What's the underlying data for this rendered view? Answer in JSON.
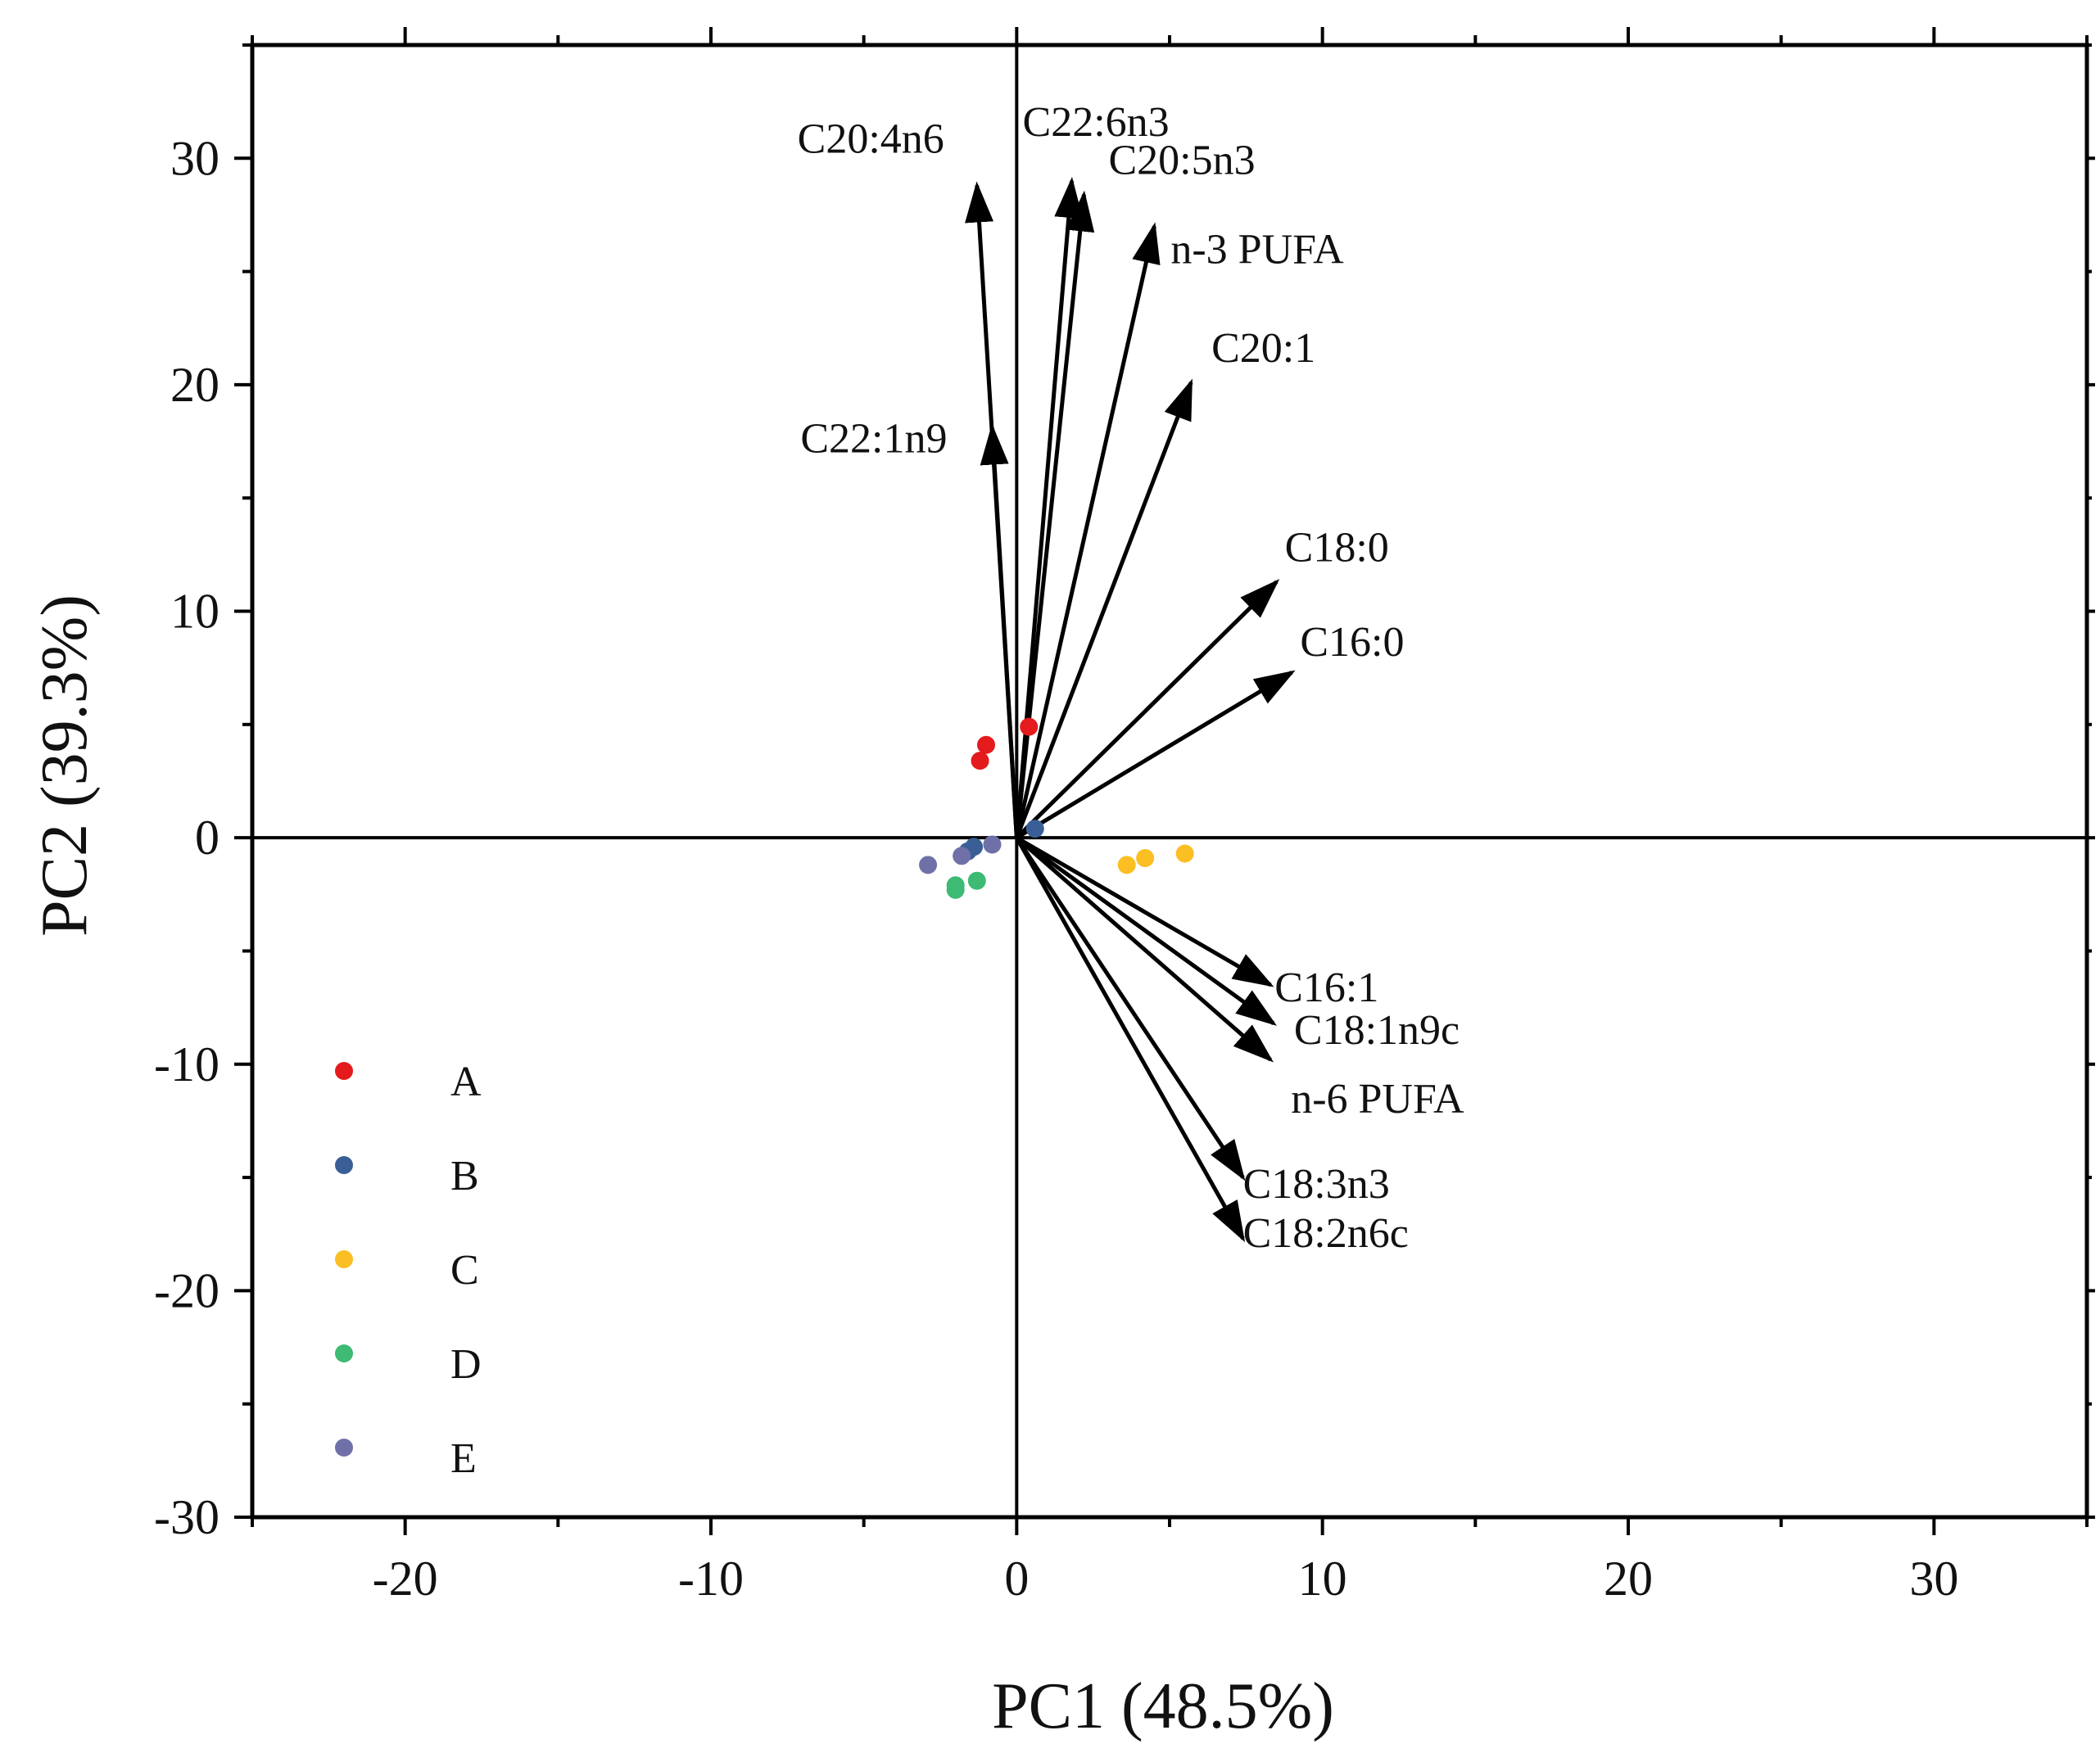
{
  "chart_data": {
    "type": "scatter",
    "subtype": "pca-biplot",
    "title": "",
    "xlabel": "PC1 (48.5%)",
    "ylabel": "PC2 (39.3%)",
    "xlim": [
      -25,
      35
    ],
    "ylim": [
      -30,
      35
    ],
    "xticks": [
      -20,
      -10,
      0,
      10,
      20,
      30
    ],
    "yticks": [
      -30,
      -20,
      -10,
      0,
      10,
      20,
      30
    ],
    "grid": false,
    "legend_position": "bottom-left",
    "series": [
      {
        "name": "A",
        "color": "#e41a1c",
        "points": [
          [
            -1.0,
            4.1
          ],
          [
            -1.2,
            3.4
          ],
          [
            0.4,
            4.9
          ]
        ]
      },
      {
        "name": "B",
        "color": "#3a5f96",
        "points": [
          [
            -1.4,
            -0.4
          ],
          [
            0.6,
            0.4
          ],
          [
            -1.6,
            -0.6
          ]
        ]
      },
      {
        "name": "C",
        "color": "#fbbf24",
        "points": [
          [
            3.6,
            -1.2
          ],
          [
            4.2,
            -0.9
          ],
          [
            5.5,
            -0.7
          ]
        ]
      },
      {
        "name": "D",
        "color": "#3dba74",
        "points": [
          [
            -2.0,
            -2.1
          ],
          [
            -2.0,
            -2.3
          ],
          [
            -1.3,
            -1.9
          ]
        ]
      },
      {
        "name": "E",
        "color": "#7070a8",
        "points": [
          [
            -2.9,
            -1.2
          ],
          [
            -1.8,
            -0.8
          ],
          [
            -0.8,
            -0.3
          ]
        ]
      }
    ],
    "vectors": [
      {
        "label": "C20:4n6",
        "x": -1.3,
        "y": 28.8
      },
      {
        "label": "C22:6n3",
        "x": 1.8,
        "y": 29.0
      },
      {
        "label": "C20:5n3",
        "x": 2.2,
        "y": 28.4
      },
      {
        "label": "n-3 PUFA",
        "x": 4.5,
        "y": 27.0
      },
      {
        "label": "C20:1",
        "x": 5.7,
        "y": 20.1
      },
      {
        "label": "C22:1n9",
        "x": -0.8,
        "y": 18.1
      },
      {
        "label": "C18:0",
        "x": 8.5,
        "y": 11.3
      },
      {
        "label": "C16:0",
        "x": 9.0,
        "y": 7.3
      },
      {
        "label": "C16:1",
        "x": 8.3,
        "y": -6.5
      },
      {
        "label": "C18:1n9c",
        "x": 8.4,
        "y": -8.2
      },
      {
        "label": "n-6 PUFA",
        "x": 8.3,
        "y": -9.8
      },
      {
        "label": "C18:3n3",
        "x": 7.4,
        "y": -15.0
      },
      {
        "label": "C18:2n6c",
        "x": 7.4,
        "y": -17.7
      }
    ]
  }
}
